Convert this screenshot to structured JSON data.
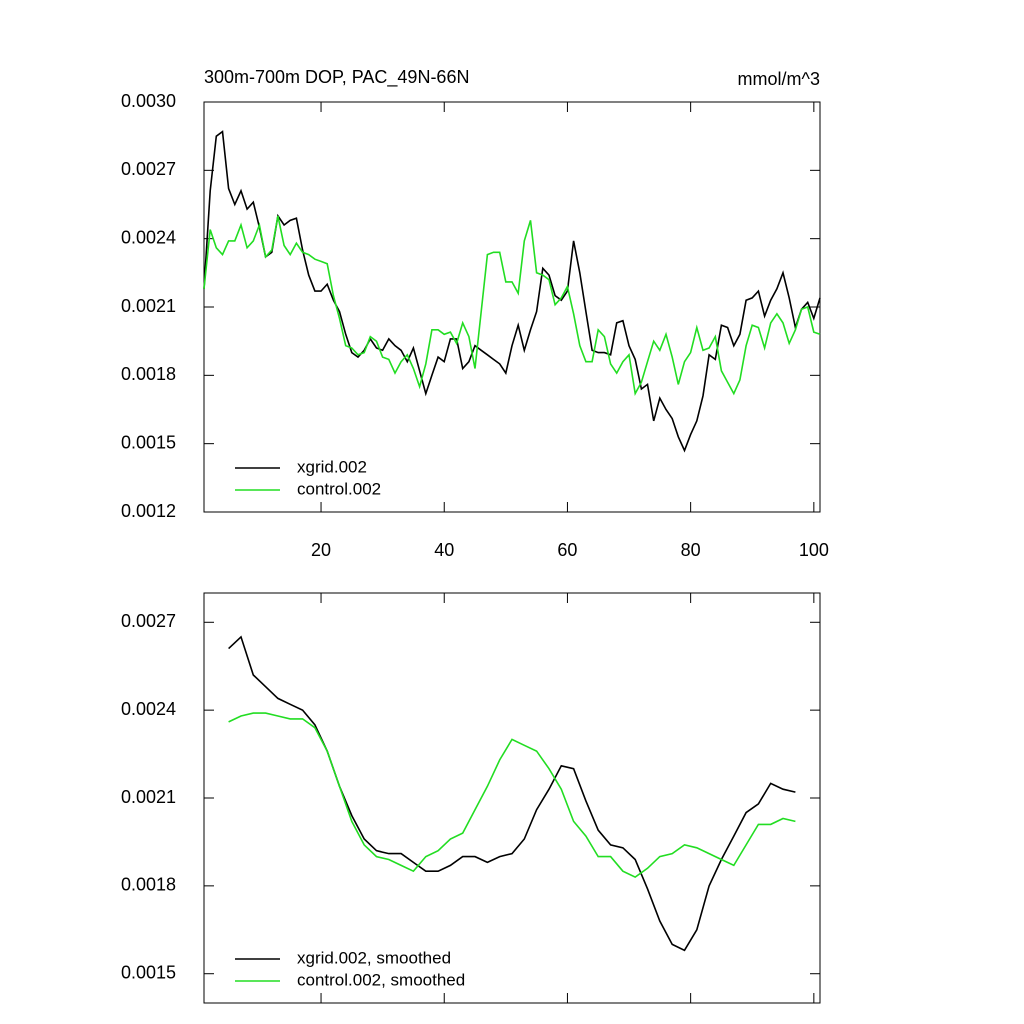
{
  "chart_data": [
    {
      "type": "line",
      "title": "300m-700m DOP, PAC_49N-66N",
      "units": "mmol/m^3",
      "x": [
        1,
        2,
        3,
        4,
        5,
        6,
        7,
        8,
        9,
        10,
        11,
        12,
        13,
        14,
        15,
        16,
        17,
        18,
        19,
        20,
        21,
        22,
        23,
        24,
        25,
        26,
        27,
        28,
        29,
        30,
        31,
        32,
        33,
        34,
        35,
        36,
        37,
        38,
        39,
        40,
        41,
        42,
        43,
        44,
        45,
        46,
        47,
        48,
        49,
        50,
        51,
        52,
        53,
        54,
        55,
        56,
        57,
        58,
        59,
        60,
        61,
        62,
        63,
        64,
        65,
        66,
        67,
        68,
        69,
        70,
        71,
        72,
        73,
        74,
        75,
        76,
        77,
        78,
        79,
        80,
        81,
        82,
        83,
        84,
        85,
        86,
        87,
        88,
        89,
        90,
        91,
        92,
        93,
        94,
        95,
        96,
        97,
        98,
        99,
        100,
        101
      ],
      "series": [
        {
          "name": "xgrid.002",
          "color": "#000000",
          "values": [
            0.00218,
            0.00261,
            0.00285,
            0.00287,
            0.00262,
            0.00255,
            0.00261,
            0.00253,
            0.00256,
            0.00245,
            0.00232,
            0.00234,
            0.0025,
            0.00246,
            0.00248,
            0.00249,
            0.00235,
            0.00224,
            0.00217,
            0.00217,
            0.0022,
            0.00213,
            0.00208,
            0.00198,
            0.0019,
            0.00188,
            0.00191,
            0.00196,
            0.00192,
            0.00191,
            0.00196,
            0.00193,
            0.00191,
            0.00186,
            0.00192,
            0.00182,
            0.00172,
            0.0018,
            0.00188,
            0.00186,
            0.00196,
            0.00196,
            0.00183,
            0.00186,
            0.00193,
            0.00191,
            0.00189,
            0.00187,
            0.00185,
            0.00181,
            0.00193,
            0.00202,
            0.00191,
            0.002,
            0.00208,
            0.00227,
            0.00224,
            0.00215,
            0.00213,
            0.00217,
            0.00239,
            0.00225,
            0.00208,
            0.00191,
            0.0019,
            0.0019,
            0.00189,
            0.00203,
            0.00204,
            0.00193,
            0.00187,
            0.00174,
            0.00176,
            0.0016,
            0.0017,
            0.00165,
            0.00161,
            0.00153,
            0.00147,
            0.00154,
            0.0016,
            0.00171,
            0.00189,
            0.00187,
            0.00202,
            0.00201,
            0.00193,
            0.00198,
            0.00213,
            0.00214,
            0.00217,
            0.00206,
            0.00213,
            0.00218,
            0.00225,
            0.00214,
            0.00201,
            0.00209,
            0.00212,
            0.00205,
            0.00214
          ]
        },
        {
          "name": "control.002",
          "color": "#22dd22",
          "values": [
            0.00218,
            0.00244,
            0.00236,
            0.00233,
            0.00239,
            0.00239,
            0.00246,
            0.00236,
            0.00239,
            0.00246,
            0.00232,
            0.00235,
            0.0025,
            0.00237,
            0.00233,
            0.00238,
            0.00234,
            0.00233,
            0.00231,
            0.0023,
            0.00229,
            0.00215,
            0.00205,
            0.00193,
            0.00192,
            0.00189,
            0.0019,
            0.00197,
            0.00195,
            0.00188,
            0.00187,
            0.00181,
            0.00186,
            0.00189,
            0.00183,
            0.00175,
            0.00185,
            0.002,
            0.002,
            0.00198,
            0.00199,
            0.00194,
            0.00203,
            0.00197,
            0.00183,
            0.00208,
            0.00233,
            0.00234,
            0.00234,
            0.00221,
            0.00221,
            0.00216,
            0.00239,
            0.00248,
            0.00225,
            0.00224,
            0.00222,
            0.00211,
            0.00214,
            0.00219,
            0.00207,
            0.00193,
            0.00186,
            0.00186,
            0.002,
            0.00197,
            0.00185,
            0.00181,
            0.00186,
            0.00189,
            0.00172,
            0.00177,
            0.00186,
            0.00195,
            0.00191,
            0.00198,
            0.00188,
            0.00176,
            0.00186,
            0.0019,
            0.00201,
            0.00191,
            0.00192,
            0.00197,
            0.00182,
            0.00177,
            0.00172,
            0.00178,
            0.00193,
            0.00202,
            0.00201,
            0.00192,
            0.00203,
            0.00207,
            0.00203,
            0.00194,
            0.002,
            0.00209,
            0.0021,
            0.00199,
            0.00198
          ]
        }
      ],
      "xlim": [
        1,
        101
      ],
      "xticks": [
        20,
        40,
        60,
        80,
        100
      ],
      "xtick_labels": true,
      "ylim": [
        0.0012,
        0.003
      ],
      "yticks": [
        0.0012,
        0.0015,
        0.0018,
        0.0021,
        0.0024,
        0.0027,
        {
          "value": 0.003,
          "label": "0.0030"
        }
      ],
      "grid": false,
      "legend": "lower left"
    },
    {
      "type": "line",
      "x": [
        5,
        7,
        9,
        11,
        13,
        15,
        17,
        19,
        21,
        23,
        25,
        27,
        29,
        31,
        33,
        35,
        37,
        39,
        41,
        43,
        45,
        47,
        49,
        51,
        53,
        55,
        57,
        59,
        61,
        63,
        65,
        67,
        69,
        71,
        73,
        75,
        77,
        79,
        81,
        83,
        85,
        87,
        89,
        91,
        93,
        95,
        97
      ],
      "series": [
        {
          "name": "xgrid.002, smoothed",
          "color": "#000000",
          "values": [
            0.00261,
            0.00265,
            0.00252,
            0.00248,
            0.00244,
            0.00242,
            0.0024,
            0.00235,
            0.00226,
            0.00214,
            0.00204,
            0.00196,
            0.00192,
            0.00191,
            0.00191,
            0.00188,
            0.00185,
            0.00185,
            0.00187,
            0.0019,
            0.0019,
            0.00188,
            0.0019,
            0.00191,
            0.00196,
            0.00206,
            0.00213,
            0.00221,
            0.0022,
            0.00209,
            0.00199,
            0.00194,
            0.00193,
            0.00189,
            0.00179,
            0.00168,
            0.0016,
            0.00158,
            0.00165,
            0.0018,
            0.00189,
            0.00197,
            0.00205,
            0.00208,
            0.00215,
            0.00213,
            0.00212
          ]
        },
        {
          "name": "control.002, smoothed",
          "color": "#22dd22",
          "values": [
            0.00236,
            0.00238,
            0.00239,
            0.00239,
            0.00238,
            0.00237,
            0.00237,
            0.00234,
            0.00226,
            0.00214,
            0.00202,
            0.00194,
            0.0019,
            0.00189,
            0.00187,
            0.00185,
            0.0019,
            0.00192,
            0.00196,
            0.00198,
            0.00206,
            0.00214,
            0.00223,
            0.0023,
            0.00228,
            0.00226,
            0.0022,
            0.00213,
            0.00202,
            0.00197,
            0.0019,
            0.0019,
            0.00185,
            0.00183,
            0.00186,
            0.0019,
            0.00191,
            0.00194,
            0.00193,
            0.00191,
            0.00189,
            0.00187,
            0.00194,
            0.00201,
            0.00201,
            0.00203,
            0.00202
          ]
        }
      ],
      "xlim": [
        1,
        101
      ],
      "xticks": [
        20,
        40,
        60,
        80,
        100
      ],
      "xtick_labels": false,
      "ylim": [
        0.0014,
        0.0028
      ],
      "yticks": [
        0.0015,
        0.0018,
        0.0021,
        0.0024,
        0.0027
      ],
      "grid": false,
      "legend": "lower left"
    }
  ]
}
